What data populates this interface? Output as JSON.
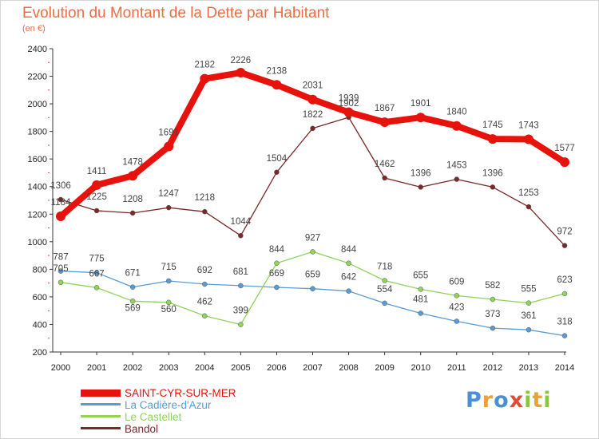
{
  "title": "Evolution du Montant de la Dette par Habitant",
  "unit_label": "(en €)",
  "logo": {
    "letters": [
      "P",
      "r",
      "o",
      "x",
      "i",
      "t",
      "i"
    ],
    "colors": [
      "#4a90d9",
      "#e8a23a",
      "#4a90d9",
      "#e04b3a",
      "#8cc63f",
      "#e8a23a",
      "#8cc63f"
    ]
  },
  "chart_data": {
    "type": "line",
    "title": "Evolution du Montant de la Dette par Habitant",
    "ylabel": "(en €)",
    "ylim": [
      200,
      2400
    ],
    "yticks": [
      200,
      400,
      600,
      800,
      1000,
      1200,
      1400,
      1600,
      1800,
      2000,
      2200,
      2400
    ],
    "x": [
      "2000",
      "2001",
      "2002",
      "2003",
      "2004",
      "2005",
      "2006",
      "2007",
      "2008",
      "2009",
      "2010",
      "2011",
      "2012",
      "2013",
      "2014"
    ],
    "grid": false,
    "legend_position": "bottom-left",
    "series": [
      {
        "name": "SAINT-CYR-SUR-MER",
        "color": "#e8120c",
        "values": [
          1184,
          1411,
          1478,
          1691,
          2182,
          2226,
          2138,
          2031,
          1939,
          1867,
          1901,
          1840,
          1745,
          1743,
          1577
        ]
      },
      {
        "name": "La Cadière-d'Azur",
        "color": "#5b9bd5",
        "values": [
          787,
          775,
          671,
          715,
          692,
          681,
          669,
          659,
          642,
          554,
          481,
          423,
          373,
          361,
          318
        ]
      },
      {
        "name": "Le Castellet",
        "color": "#8fd35a",
        "values": [
          705,
          667,
          569,
          560,
          462,
          399,
          844,
          927,
          844,
          718,
          655,
          609,
          582,
          555,
          623
        ]
      },
      {
        "name": "Bandol",
        "color": "#7a2828",
        "values": [
          1306,
          1225,
          1208,
          1247,
          1218,
          1044,
          1504,
          1822,
          1902,
          1462,
          1396,
          1453,
          1396,
          1253,
          972
        ]
      }
    ],
    "point_labels": [
      [
        "1184",
        "1411",
        "1478",
        "1691",
        "2182",
        "2226",
        "2138",
        "2031",
        "1939",
        "1867",
        "1901",
        "1840",
        "1745",
        "1743",
        "1577"
      ],
      [
        "787",
        "775",
        "671",
        "715",
        "692",
        "681",
        "669",
        "659",
        "642",
        "554",
        "481",
        "423",
        "373",
        "361",
        "318"
      ],
      [
        "705",
        "667",
        "569",
        "560",
        "462",
        "399",
        "844",
        "927",
        "844",
        "718",
        "655",
        "609",
        "582",
        "555",
        "623"
      ],
      [
        "1306",
        "1225",
        "1208",
        "1247",
        "1218",
        "1044",
        "1504",
        "1822",
        "1902",
        "1462",
        "1396",
        "1453",
        "1396",
        "1253",
        "972"
      ]
    ]
  }
}
